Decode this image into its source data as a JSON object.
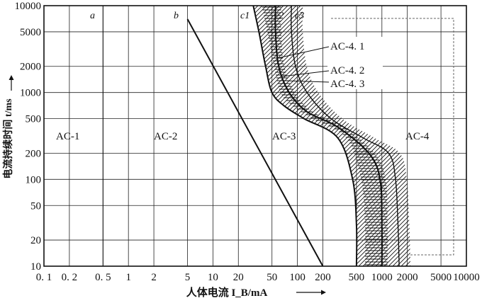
{
  "chart_data": {
    "type": "line",
    "title": "",
    "xlabel": "人体电流 I_B/mA",
    "ylabel": "电流持续时间 t/ms",
    "xscale": "log",
    "yscale": "log",
    "xlim": [
      0.1,
      10000
    ],
    "ylim": [
      10,
      10000
    ],
    "grid": true,
    "x_tick_labels": [
      "0. 1",
      "0. 2",
      "0. 5",
      "1",
      "2",
      "5",
      "10",
      "20",
      "50",
      "100",
      "200",
      "500",
      "1000",
      "2000",
      "5000",
      "10000"
    ],
    "y_tick_labels": [
      "10",
      "20",
      "50",
      "100",
      "200",
      "500",
      "1000",
      "2000",
      "5000",
      "10000"
    ],
    "zones": [
      "AC-1",
      "AC-2",
      "AC-3",
      "AC-4"
    ],
    "annotations": [
      "AC-4. 1",
      "AC-4. 2",
      "AC-4. 3"
    ],
    "series": [
      {
        "name": "a",
        "x": [
          0.5,
          0.5
        ],
        "y": [
          10,
          10000
        ]
      },
      {
        "name": "b",
        "x": [
          5,
          200
        ],
        "y": [
          7000,
          10
        ]
      },
      {
        "name": "c1",
        "x": [
          30,
          35,
          42,
          50,
          70,
          120,
          300,
          450,
          500,
          500
        ],
        "y": [
          10000,
          5000,
          2000,
          1000,
          700,
          500,
          300,
          100,
          30,
          10
        ]
      },
      {
        "name": "c2",
        "x": [
          55,
          55,
          60,
          80,
          130,
          300,
          700,
          950,
          1000,
          1000
        ],
        "y": [
          10000,
          5000,
          2000,
          1000,
          600,
          400,
          200,
          100,
          30,
          10
        ]
      },
      {
        "name": "c3",
        "x": [
          85,
          85,
          95,
          130,
          250,
          600,
          1200,
          1450,
          1550,
          1600
        ],
        "y": [
          10000,
          5000,
          2000,
          1000,
          500,
          300,
          200,
          100,
          30,
          10
        ]
      }
    ]
  }
}
